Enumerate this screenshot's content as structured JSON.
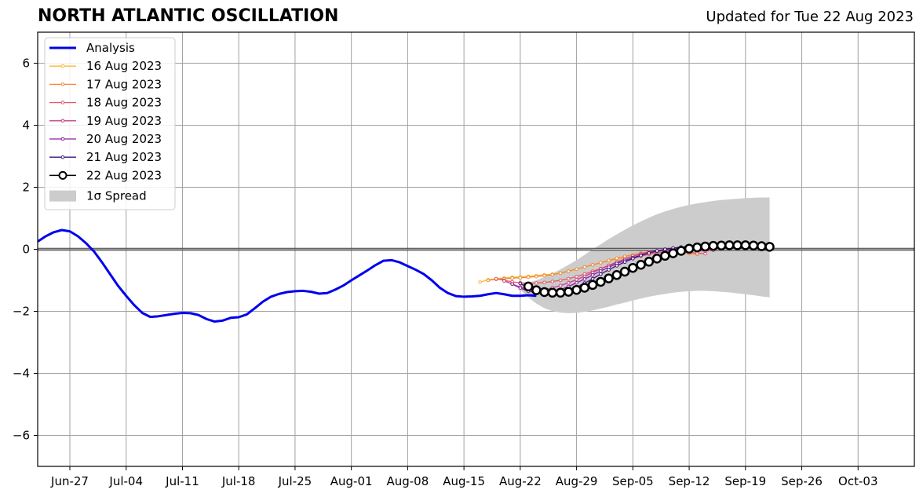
{
  "chart_data": {
    "type": "line",
    "title": "NORTH ATLANTIC OSCILLATION",
    "subtitle": "Updated for Tue 22 Aug 2023",
    "xlabel": "",
    "ylabel": "",
    "x_start": "2023-06-23",
    "x_end": "2023-10-10",
    "ylim": [
      -7,
      7
    ],
    "yticks": [
      -6,
      -4,
      -2,
      0,
      2,
      4,
      6
    ],
    "ytick_labels": [
      "−6",
      "−4",
      "−2",
      "0",
      "2",
      "4",
      "6"
    ],
    "xticks": [
      "2023-06-27",
      "2023-07-04",
      "2023-07-11",
      "2023-07-18",
      "2023-07-25",
      "2023-08-01",
      "2023-08-08",
      "2023-08-15",
      "2023-08-22",
      "2023-08-29",
      "2023-09-05",
      "2023-09-12",
      "2023-09-19",
      "2023-09-26",
      "2023-10-03"
    ],
    "xtick_labels": [
      "Jun-27",
      "Jul-04",
      "Jul-11",
      "Jul-18",
      "Jul-25",
      "Aug-01",
      "Aug-08",
      "Aug-15",
      "Aug-22",
      "Aug-29",
      "Sep-05",
      "Sep-12",
      "Sep-19",
      "Sep-26",
      "Oct-03"
    ],
    "grid": true,
    "zero_line": true,
    "legend_position": "top-left",
    "analysis": {
      "name": "Analysis",
      "color": "#0000ee",
      "start": "2023-06-23",
      "values": [
        0.25,
        0.42,
        0.55,
        0.62,
        0.58,
        0.42,
        0.2,
        -0.07,
        -0.42,
        -0.8,
        -1.18,
        -1.5,
        -1.8,
        -2.05,
        -2.18,
        -2.16,
        -2.12,
        -2.08,
        -2.05,
        -2.06,
        -2.12,
        -2.25,
        -2.33,
        -2.3,
        -2.21,
        -2.19,
        -2.1,
        -1.9,
        -1.69,
        -1.53,
        -1.44,
        -1.38,
        -1.35,
        -1.34,
        -1.37,
        -1.43,
        -1.41,
        -1.3,
        -1.17,
        -1.0,
        -0.84,
        -0.68,
        -0.51,
        -0.37,
        -0.35,
        -0.42,
        -0.54,
        -0.66,
        -0.8,
        -1.0,
        -1.24,
        -1.41,
        -1.51,
        -1.53,
        -1.52,
        -1.5,
        -1.45,
        -1.41,
        -1.45,
        -1.5,
        -1.5,
        -1.48,
        -1.5
      ]
    },
    "forecasts": [
      {
        "name": "16 Aug 2023",
        "color": "#f9b733",
        "start": "2023-08-17",
        "values": [
          -1.06,
          -0.98,
          -0.95,
          -0.92,
          -0.9,
          -0.89,
          -0.87,
          -0.85,
          -0.82,
          -0.8,
          -0.76,
          -0.7,
          -0.64,
          -0.58,
          -0.51,
          -0.44,
          -0.38,
          -0.32,
          -0.27,
          -0.22,
          -0.17,
          -0.12,
          -0.08,
          -0.05
        ]
      },
      {
        "name": "17 Aug 2023",
        "color": "#ef8a3a",
        "start": "2023-08-18",
        "values": [
          -1.0,
          -0.97,
          -0.95,
          -0.93,
          -0.92,
          -0.9,
          -0.88,
          -0.85,
          -0.82,
          -0.77,
          -0.71,
          -0.64,
          -0.57,
          -0.5,
          -0.43,
          -0.36,
          -0.29,
          -0.23,
          -0.17,
          -0.12,
          -0.08,
          -0.06,
          -0.05,
          -0.07,
          -0.1,
          -0.14,
          -0.16
        ]
      },
      {
        "name": "18 Aug 2023",
        "color": "#e05a62",
        "start": "2023-08-19",
        "values": [
          -0.95,
          -1.0,
          -1.05,
          -1.08,
          -1.1,
          -1.09,
          -1.07,
          -1.04,
          -1.0,
          -0.95,
          -0.88,
          -0.8,
          -0.71,
          -0.62,
          -0.53,
          -0.44,
          -0.36,
          -0.28,
          -0.22,
          -0.16,
          -0.12,
          -0.09,
          -0.08,
          -0.08,
          -0.1,
          -0.12,
          -0.14
        ]
      },
      {
        "name": "19 Aug 2023",
        "color": "#c2408e",
        "start": "2023-08-20",
        "values": [
          -1.02,
          -1.12,
          -1.22,
          -1.3,
          -1.33,
          -1.3,
          -1.24,
          -1.17,
          -1.08,
          -0.98,
          -0.87,
          -0.75,
          -0.63,
          -0.52,
          -0.41,
          -0.31,
          -0.22,
          -0.15,
          -0.09,
          -0.05,
          -0.03,
          -0.03,
          -0.03,
          -0.04,
          -0.05,
          -0.05,
          -0.03
        ]
      },
      {
        "name": "20 Aug 2023",
        "color": "#8a1d9e",
        "start": "2023-08-21",
        "values": [
          -1.12,
          -1.25,
          -1.35,
          -1.4,
          -1.42,
          -1.38,
          -1.3,
          -1.2,
          -1.08,
          -0.96,
          -0.83,
          -0.7,
          -0.58,
          -0.46,
          -0.36,
          -0.27,
          -0.19,
          -0.12,
          -0.07,
          -0.03,
          0.0,
          0.02,
          0.03,
          0.03,
          0.02,
          0.02
        ]
      },
      {
        "name": "21 Aug 2023",
        "color": "#3d137a",
        "start": "2023-08-22",
        "values": [
          -1.1,
          -1.25,
          -1.37,
          -1.43,
          -1.44,
          -1.41,
          -1.33,
          -1.22,
          -1.09,
          -0.95,
          -0.8,
          -0.66,
          -0.53,
          -0.41,
          -0.3,
          -0.2,
          -0.12,
          -0.05,
          0.0,
          0.04,
          0.07,
          0.09,
          0.1,
          0.1,
          0.09,
          0.08,
          0.08
        ]
      },
      {
        "name": "22 Aug 2023",
        "color": "#000000",
        "marker": "open-circle",
        "start": "2023-08-23",
        "values": [
          -1.2,
          -1.32,
          -1.38,
          -1.4,
          -1.4,
          -1.37,
          -1.31,
          -1.24,
          -1.15,
          -1.05,
          -0.94,
          -0.83,
          -0.72,
          -0.6,
          -0.5,
          -0.4,
          -0.3,
          -0.21,
          -0.13,
          -0.05,
          0.02,
          0.06,
          0.09,
          0.11,
          0.12,
          0.13,
          0.13,
          0.13,
          0.12,
          0.1,
          0.08
        ]
      }
    ],
    "spread": {
      "name": "1σ Spread",
      "color": "#cccccc",
      "start": "2023-08-22",
      "upper": [
        -1.12,
        -1.08,
        -1.0,
        -0.9,
        -0.78,
        -0.65,
        -0.5,
        -0.35,
        -0.18,
        0.0,
        0.16,
        0.33,
        0.48,
        0.63,
        0.77,
        0.9,
        1.02,
        1.13,
        1.22,
        1.3,
        1.37,
        1.43,
        1.48,
        1.52,
        1.56,
        1.59,
        1.61,
        1.63,
        1.65,
        1.66,
        1.67,
        1.67
      ],
      "lower": [
        -1.3,
        -1.55,
        -1.75,
        -1.9,
        -1.99,
        -2.04,
        -2.06,
        -2.05,
        -2.02,
        -1.97,
        -1.91,
        -1.85,
        -1.78,
        -1.72,
        -1.65,
        -1.59,
        -1.53,
        -1.48,
        -1.44,
        -1.4,
        -1.37,
        -1.35,
        -1.34,
        -1.34,
        -1.35,
        -1.37,
        -1.39,
        -1.42,
        -1.45,
        -1.48,
        -1.52,
        -1.55
      ]
    },
    "legend": [
      "Analysis",
      "16 Aug 2023",
      "17 Aug 2023",
      "18 Aug 2023",
      "19 Aug 2023",
      "20 Aug 2023",
      "21 Aug 2023",
      "22 Aug 2023",
      "1σ Spread"
    ]
  }
}
